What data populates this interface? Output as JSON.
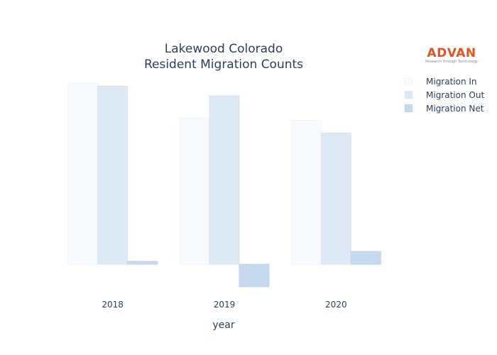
{
  "chart_data": {
    "type": "bar",
    "title": [
      "Lakewood Colorado",
      "Resident Migration Counts"
    ],
    "xlabel": "year",
    "ylabel": "",
    "categories": [
      "2018",
      "2019",
      "2020"
    ],
    "series": [
      {
        "name": "Migration In",
        "values": [
          18500,
          14900,
          14700
        ],
        "color": "#f7faff",
        "stroke": "#eef3fb"
      },
      {
        "name": "Migration Out",
        "values": [
          18200,
          17200,
          13400
        ],
        "color": "#dfe9f6",
        "stroke": "#d7e3f3"
      },
      {
        "name": "Migration Net",
        "values": [
          300,
          -2300,
          1300
        ],
        "color": "#c7d9ee",
        "stroke": "#bdd2ea"
      }
    ],
    "ylim": [
      -2600,
      18800
    ],
    "grid": false,
    "yaxis_visible": false,
    "legend_position": "top-right"
  },
  "logo": {
    "word": "ADVAN",
    "tagline": "Research through Technology"
  }
}
